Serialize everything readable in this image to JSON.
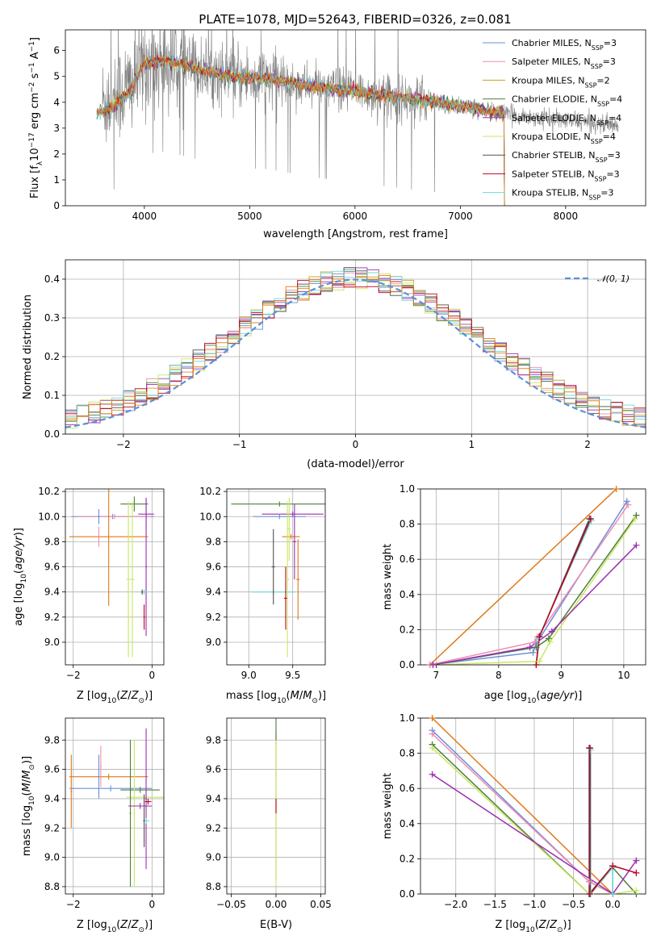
{
  "title": "PLATE=1078, MJD=52643, FIBERID=0326, z=0.081",
  "colors": {
    "spectrum": "#808080",
    "models": [
      "#6A8FD8",
      "#F08CB0",
      "#C8A020",
      "#4E7E3E",
      "#9B30B0",
      "#C8E860",
      "#505050",
      "#C00020",
      "#70D8D8"
    ],
    "extra": [
      "#E07818"
    ],
    "gaussian": "#5B8FDB"
  },
  "legend_spectrum": [
    {
      "label": "Chabrier MILES, N",
      "sub": "SSP",
      "suffix": "=3"
    },
    {
      "label": "Salpeter MILES, N",
      "sub": "SSP",
      "suffix": "=3"
    },
    {
      "label": "Kroupa MILES, N",
      "sub": "SSP",
      "suffix": "=2"
    },
    {
      "label": "Chabrier ELODIE, N",
      "sub": "SSP",
      "suffix": "=4"
    },
    {
      "label": "Salpeter ELODIE, N",
      "sub": "SSP",
      "suffix": "=4"
    },
    {
      "label": "Kroupa ELODIE, N",
      "sub": "SSP",
      "suffix": "=4"
    },
    {
      "label": "Chabrier STELIB, N",
      "sub": "SSP",
      "suffix": "=3"
    },
    {
      "label": "Salpeter STELIB, N",
      "sub": "SSP",
      "suffix": "=3"
    },
    {
      "label": "Kroupa STELIB, N",
      "sub": "SSP",
      "suffix": "=3"
    }
  ],
  "legend_gauss": "𝒩(0, 1)",
  "chart_data": [
    {
      "id": "spectrum",
      "type": "line",
      "xlabel": "wavelength [Angstrom, rest frame]",
      "ylabel": "Flux [f_λ 10^-17 erg cm^-2 s^-1 A^-1]",
      "xlim": [
        3250,
        8760
      ],
      "ylim": [
        0,
        6.8
      ],
      "xticks": [
        4000,
        5000,
        6000,
        7000,
        8000
      ],
      "yticks": [
        0,
        1,
        2,
        3,
        4,
        5,
        6
      ],
      "grid": false,
      "legend": "upper right",
      "data_range": [
        3600,
        8500
      ],
      "model_range": [
        3550,
        7420
      ],
      "continuum": [
        [
          3550,
          3.9
        ],
        [
          3700,
          4.1
        ],
        [
          3900,
          4.8
        ],
        [
          4000,
          5.5
        ],
        [
          4200,
          5.6
        ],
        [
          4500,
          5.3
        ],
        [
          4800,
          5.0
        ],
        [
          5200,
          4.9
        ],
        [
          5600,
          4.6
        ],
        [
          6000,
          4.4
        ],
        [
          6400,
          4.2
        ],
        [
          6800,
          4.0
        ],
        [
          7200,
          3.7
        ],
        [
          7500,
          3.5
        ],
        [
          8000,
          3.3
        ],
        [
          8500,
          3.1
        ]
      ]
    },
    {
      "id": "residuals",
      "type": "histogram",
      "xlabel": "(data-model)/error",
      "ylabel": "Normed distribution",
      "xlim": [
        -2.5,
        2.5
      ],
      "ylim": [
        0,
        0.45
      ],
      "xticks": [
        -2,
        -1,
        0,
        1,
        2
      ],
      "yticks": [
        0.0,
        0.1,
        0.2,
        0.3,
        0.4
      ],
      "grid": true,
      "legend": "upper right",
      "bin_width": 0.1,
      "gaussian": {
        "mean": 0,
        "sigma": 1
      }
    },
    {
      "id": "age_vs_Z",
      "type": "errorbar",
      "xlabel": "Z [log10(Z/Z⊙)]",
      "ylabel": "age  [log10(age/yr)]",
      "xlim": [
        -2.2,
        0.3
      ],
      "ylim": [
        8.82,
        10.22
      ],
      "xticks": [
        -2,
        0
      ],
      "yticks": [
        9.0,
        9.2,
        9.4,
        9.6,
        9.8,
        10.0,
        10.2
      ],
      "grid": true,
      "points": [
        {
          "c": 0,
          "x": -1.0,
          "xe": 1.05,
          "y": 10.0,
          "ye": 0.02
        },
        {
          "c": 1,
          "x": -0.95,
          "xe": 0.95,
          "y": 10.0,
          "ye": 0.02
        },
        {
          "c": 9,
          "x": -1.1,
          "xe": 1.0,
          "y": 9.84,
          "ye": 0.55
        },
        {
          "c": 1,
          "x": -1.35,
          "xe": 0.02,
          "y": 9.84,
          "ye": 0.08
        },
        {
          "c": 0,
          "x": -1.35,
          "xe": 0.02,
          "y": 10.0,
          "ye": 0.06
        },
        {
          "c": 3,
          "x": -0.45,
          "xe": 0.35,
          "y": 10.1,
          "ye": 0.06
        },
        {
          "c": 5,
          "x": -0.6,
          "xe": 0.05,
          "y": 9.5,
          "ye": 0.62
        },
        {
          "c": 5,
          "x": -0.5,
          "xe": 0.05,
          "y": 9.5,
          "ye": 0.62
        },
        {
          "c": 4,
          "x": -0.15,
          "xe": 0.2,
          "y": 10.02,
          "ye": 0.12
        },
        {
          "c": 4,
          "x": -0.15,
          "xe": 0.02,
          "y": 9.6,
          "ye": 0.55
        },
        {
          "c": 8,
          "x": -0.2,
          "xe": 0.1,
          "y": 9.4,
          "ye": 0.02
        },
        {
          "c": 7,
          "x": -0.2,
          "xe": 0.02,
          "y": 9.2,
          "ye": 0.1
        },
        {
          "c": 6,
          "x": -0.25,
          "xe": 0.02,
          "y": 9.4,
          "ye": 0.02
        }
      ]
    },
    {
      "id": "age_vs_mass",
      "type": "errorbar",
      "xlabel": "mass [log10(M/M⊙)]",
      "ylabel": "",
      "xlim": [
        8.75,
        9.87
      ],
      "ylim": [
        8.82,
        10.22
      ],
      "xticks": [
        9.0,
        9.5
      ],
      "yticks": [
        9.0,
        9.2,
        9.4,
        9.6,
        9.8,
        10.0,
        10.2
      ],
      "grid": true,
      "points": [
        {
          "c": 3,
          "x": 9.35,
          "xe": 0.55,
          "y": 10.1,
          "ye": 0.02
        },
        {
          "c": 4,
          "x": 9.5,
          "xe": 0.35,
          "y": 10.02,
          "ye": 0.02
        },
        {
          "c": 0,
          "x": 9.35,
          "xe": 0.3,
          "y": 10.0,
          "ye": 0.02
        },
        {
          "c": 9,
          "x": 9.48,
          "xe": 0.1,
          "y": 9.84,
          "ye": 0.02
        },
        {
          "c": 9,
          "x": 9.56,
          "xe": 0.02,
          "y": 9.5,
          "ye": 0.32
        },
        {
          "c": 8,
          "x": 9.28,
          "xe": 0.25,
          "y": 9.4,
          "ye": 0.02
        },
        {
          "c": 6,
          "x": 9.28,
          "xe": 0.02,
          "y": 9.6,
          "ye": 0.3
        },
        {
          "c": 7,
          "x": 9.42,
          "xe": 0.02,
          "y": 9.35,
          "ye": 0.25
        },
        {
          "c": 5,
          "x": 9.44,
          "xe": 0.02,
          "y": 9.5,
          "ye": 0.62
        },
        {
          "c": 4,
          "x": 9.52,
          "xe": 0.02,
          "y": 9.8,
          "ye": 0.3
        },
        {
          "c": 5,
          "x": 9.46,
          "xe": 0.02,
          "y": 9.9,
          "ye": 0.25
        }
      ]
    },
    {
      "id": "massweight_vs_age",
      "type": "line",
      "xlabel": "age  [log10(age/yr)]",
      "ylabel": "mass weight",
      "xlim": [
        6.75,
        10.35
      ],
      "ylim": [
        0,
        1.0
      ],
      "xticks": [
        7,
        8,
        9,
        10
      ],
      "yticks": [
        0.0,
        0.2,
        0.4,
        0.6,
        0.8,
        1.0
      ],
      "grid": true,
      "series": [
        {
          "c": 9,
          "x": [
            6.9,
            9.88
          ],
          "y": [
            0.0,
            1.0
          ]
        },
        {
          "c": 0,
          "x": [
            6.9,
            8.55,
            8.6,
            10.05
          ],
          "y": [
            0.0,
            0.07,
            0.12,
            0.93
          ]
        },
        {
          "c": 1,
          "x": [
            6.9,
            8.58,
            8.62,
            10.07
          ],
          "y": [
            0.0,
            0.13,
            0.16,
            0.91
          ]
        },
        {
          "c": 3,
          "x": [
            6.95,
            8.6,
            8.8,
            10.2
          ],
          "y": [
            0.0,
            0.1,
            0.15,
            0.85
          ]
        },
        {
          "c": 5,
          "x": [
            6.95,
            8.65,
            8.82,
            10.18
          ],
          "y": [
            0.0,
            0.02,
            0.13,
            0.83
          ]
        },
        {
          "c": 4,
          "x": [
            6.95,
            8.5,
            8.85,
            10.2
          ],
          "y": [
            0.0,
            0.1,
            0.19,
            0.68
          ]
        },
        {
          "c": 6,
          "x": [
            8.6,
            8.65,
            9.45
          ],
          "y": [
            0.0,
            0.16,
            0.83
          ]
        },
        {
          "c": 8,
          "x": [
            8.6,
            8.63,
            9.48
          ],
          "y": [
            0.0,
            0.15,
            0.82
          ]
        },
        {
          "c": 7,
          "x": [
            8.6,
            8.65,
            9.47
          ],
          "y": [
            0.0,
            0.16,
            0.83
          ]
        }
      ]
    },
    {
      "id": "mass_vs_Z",
      "type": "errorbar",
      "xlabel": "Z [log10(Z/Z⊙)]",
      "ylabel": "mass [log10(M/M⊙)]",
      "xlim": [
        -2.2,
        0.3
      ],
      "ylim": [
        8.75,
        9.95
      ],
      "xticks": [
        -2,
        0
      ],
      "yticks": [
        8.8,
        9.0,
        9.2,
        9.4,
        9.6,
        9.8
      ],
      "grid": true,
      "points": [
        {
          "c": 0,
          "x": -1.05,
          "xe": 1.05,
          "y": 9.47,
          "ye": 0.02
        },
        {
          "c": 9,
          "x": -1.1,
          "xe": 1.0,
          "y": 9.55,
          "ye": 0.02
        },
        {
          "c": 9,
          "x": -2.05,
          "xe": 0.02,
          "y": 9.45,
          "ye": 0.25
        },
        {
          "c": 0,
          "x": -1.35,
          "xe": 0.02,
          "y": 9.55,
          "ye": 0.15
        },
        {
          "c": 1,
          "x": -1.3,
          "xe": 0.02,
          "y": 9.62,
          "ye": 0.14
        },
        {
          "c": 3,
          "x": -0.3,
          "xe": 0.5,
          "y": 9.46,
          "ye": 0.02
        },
        {
          "c": 5,
          "x": -0.15,
          "xe": 0.5,
          "y": 9.41,
          "ye": 0.02
        },
        {
          "c": 3,
          "x": -0.55,
          "xe": 0.02,
          "y": 9.3,
          "ye": 0.5
        },
        {
          "c": 5,
          "x": -0.45,
          "xe": 0.02,
          "y": 9.3,
          "ye": 0.5
        },
        {
          "c": 4,
          "x": -0.3,
          "xe": 0.3,
          "y": 9.35,
          "ye": 0.02
        },
        {
          "c": 4,
          "x": -0.15,
          "xe": 0.02,
          "y": 9.4,
          "ye": 0.48
        },
        {
          "c": 8,
          "x": -0.15,
          "xe": 0.08,
          "y": 9.25,
          "ye": 0.02
        },
        {
          "c": 6,
          "x": -0.2,
          "xe": 0.02,
          "y": 9.25,
          "ye": 0.18
        },
        {
          "c": 7,
          "x": -0.1,
          "xe": 0.08,
          "y": 9.38,
          "ye": 0.02
        }
      ]
    },
    {
      "id": "mass_vs_EBV",
      "type": "errorbar",
      "xlabel": "E(B-V)",
      "ylabel": "",
      "xlim": [
        -0.055,
        0.055
      ],
      "ylim": [
        8.75,
        9.95
      ],
      "xticks": [
        -0.05,
        0.0,
        0.05
      ],
      "xtick_labels": [
        "−0.05",
        "0.00",
        "0.05"
      ],
      "yticks": [
        8.8,
        9.0,
        9.2,
        9.4,
        9.6,
        9.8
      ],
      "grid": true,
      "points": [
        {
          "c": 4,
          "x": 0,
          "xe": 0.0005,
          "y": 9.82,
          "ye": 0.05
        },
        {
          "c": 1,
          "x": 0,
          "xe": 0.0005,
          "y": 9.6,
          "ye": 0.06
        },
        {
          "c": 5,
          "x": 0,
          "xe": 0.0005,
          "y": 9.7,
          "ye": 0.07
        },
        {
          "c": 3,
          "x": 0,
          "xe": 0.0005,
          "y": 9.4,
          "ye": 0.55
        },
        {
          "c": 5,
          "x": 0,
          "xe": 0.0005,
          "y": 9.3,
          "ye": 0.5
        },
        {
          "c": 7,
          "x": 0,
          "xe": 0.0005,
          "y": 9.35,
          "ye": 0.05
        }
      ]
    },
    {
      "id": "massweight_vs_Z",
      "type": "line",
      "xlabel": "Z [log10(Z/Z⊙)]",
      "ylabel": "mass weight",
      "xlim": [
        -2.45,
        0.42
      ],
      "ylim": [
        0,
        1.0
      ],
      "xticks": [
        -2.0,
        -1.5,
        -1.0,
        -0.5,
        0.0
      ],
      "xtick_labels": [
        "−2.0",
        "−1.5",
        "−1.0",
        "−0.5",
        "0.0"
      ],
      "yticks": [
        0.0,
        0.2,
        0.4,
        0.6,
        0.8,
        1.0
      ],
      "grid": true,
      "series": [
        {
          "c": 9,
          "x": [
            -2.3,
            0.0
          ],
          "y": [
            1.0,
            0.0
          ]
        },
        {
          "c": 0,
          "x": [
            -2.3,
            -0.3,
            0.0
          ],
          "y": [
            0.93,
            0.07,
            0.0
          ]
        },
        {
          "c": 1,
          "x": [
            -2.3,
            -0.3,
            0.0
          ],
          "y": [
            0.91,
            0.07,
            0.0
          ]
        },
        {
          "c": 3,
          "x": [
            -2.3,
            -0.3,
            0.0,
            0.3
          ],
          "y": [
            0.85,
            0.0,
            0.15,
            0.0
          ]
        },
        {
          "c": 5,
          "x": [
            -2.3,
            -0.3,
            0.0,
            0.3
          ],
          "y": [
            0.83,
            0.0,
            0.0,
            0.02
          ]
        },
        {
          "c": 4,
          "x": [
            -2.3,
            0.0,
            0.3
          ],
          "y": [
            0.68,
            0.0,
            0.19
          ]
        },
        {
          "c": 6,
          "x": [
            -0.3,
            -0.3,
            0.0,
            0.0
          ],
          "y": [
            0.83,
            0.0,
            0.16,
            0.0
          ]
        },
        {
          "c": 8,
          "x": [
            -0.28,
            -0.28,
            0.0,
            0.0
          ],
          "y": [
            0.82,
            0.0,
            0.15,
            0.0
          ]
        },
        {
          "c": 7,
          "x": [
            -0.29,
            -0.29,
            0.0,
            0.3
          ],
          "y": [
            0.83,
            0.0,
            0.16,
            0.12
          ]
        }
      ]
    }
  ]
}
